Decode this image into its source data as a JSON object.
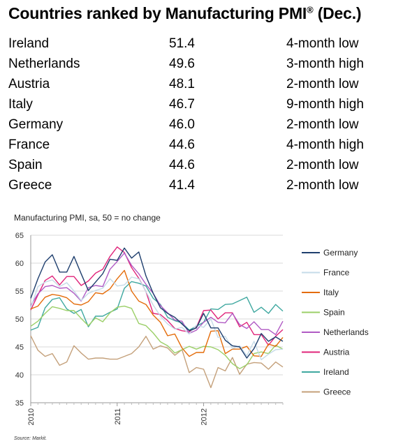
{
  "header": {
    "title_main": "Countries ranked by Manufacturing PMI",
    "title_sup": "®",
    "title_tail": " (Dec.)"
  },
  "ranking": [
    {
      "country": "Ireland",
      "pmi": "51.4",
      "status": "4-month low"
    },
    {
      "country": "Netherlands",
      "pmi": "49.6",
      "status": "3-month high"
    },
    {
      "country": "Austria",
      "pmi": "48.1",
      "status": "2-month low"
    },
    {
      "country": "Italy",
      "pmi": "46.7",
      "status": "9-month high"
    },
    {
      "country": "Germany",
      "pmi": "46.0",
      "status": "2-month low"
    },
    {
      "country": "France",
      "pmi": "44.6",
      "status": "4-month high"
    },
    {
      "country": "Spain",
      "pmi": "44.6",
      "status": "2-month low"
    },
    {
      "country": "Greece",
      "pmi": "41.4",
      "status": "2-month low"
    }
  ],
  "source": "Source: Markit.",
  "chart_data": {
    "type": "line",
    "title": "Manufacturing PMI, sa, 50 = no change",
    "xlabel": "",
    "ylabel": "",
    "ylim": [
      35,
      65
    ],
    "yticks": [
      35,
      40,
      45,
      50,
      55,
      60,
      65
    ],
    "x_period": "monthly, Jan 2010 – Dec 2012",
    "x_ticklabels": [
      "2010",
      "2011",
      "2012"
    ],
    "grid": "horizontal gridlines",
    "legend": "right",
    "series": [
      {
        "name": "Germany",
        "color": "#1f3f6e",
        "values": [
          53.7,
          57.2,
          60.2,
          61.5,
          58.4,
          58.4,
          61.2,
          58.1,
          55.1,
          56.6,
          58.1,
          60.7,
          60.5,
          62.7,
          60.9,
          62.0,
          57.7,
          54.6,
          52.0,
          51.0,
          50.3,
          49.1,
          47.9,
          48.4,
          51.0,
          48.4,
          48.4,
          46.2,
          45.2,
          45.0,
          43.0,
          44.7,
          47.4,
          46.0,
          46.8,
          46.0
        ]
      },
      {
        "name": "France",
        "color": "#c5dbe8",
        "values": [
          52.0,
          55.8,
          56.6,
          57.0,
          55.8,
          56.5,
          55.0,
          53.3,
          54.6,
          55.1,
          55.5,
          57.2,
          55.9,
          56.1,
          57.5,
          57.2,
          54.9,
          52.5,
          50.5,
          49.1,
          48.2,
          48.5,
          47.3,
          48.9,
          48.5,
          50.0,
          46.7,
          46.9,
          44.7,
          45.2,
          43.4,
          46.0,
          42.7,
          43.7,
          44.5,
          44.6
        ]
      },
      {
        "name": "Italy",
        "color": "#e46c0a",
        "values": [
          51.8,
          52.3,
          53.9,
          54.4,
          54.2,
          53.8,
          52.7,
          52.5,
          53.1,
          54.7,
          54.5,
          55.4,
          57.2,
          58.7,
          55.0,
          53.2,
          52.6,
          50.7,
          49.4,
          47.0,
          47.3,
          44.8,
          43.3,
          44.0,
          44.0,
          47.8,
          47.9,
          43.8,
          44.6,
          44.6,
          45.1,
          43.4,
          43.3,
          45.5,
          45.1,
          46.7
        ]
      },
      {
        "name": "Spain",
        "color": "#9bcf68",
        "values": [
          48.7,
          49.6,
          51.0,
          52.2,
          51.9,
          51.5,
          51.5,
          50.1,
          48.8,
          50.2,
          49.5,
          51.1,
          52.1,
          52.3,
          51.9,
          49.2,
          48.8,
          47.5,
          45.9,
          45.2,
          43.9,
          44.5,
          45.1,
          44.6,
          45.1,
          45.0,
          44.5,
          43.5,
          42.0,
          41.1,
          41.8,
          43.8,
          44.1,
          43.8,
          45.3,
          44.6
        ]
      },
      {
        "name": "Netherlands",
        "color": "#b05ac4",
        "values": [
          52.4,
          54.5,
          55.8,
          56.0,
          55.5,
          55.6,
          54.6,
          53.2,
          55.6,
          56.0,
          55.8,
          58.9,
          60.3,
          61.8,
          59.6,
          58.1,
          56.2,
          54.6,
          52.4,
          51.1,
          49.8,
          49.6,
          47.4,
          48.0,
          49.4,
          50.3,
          49.4,
          49.3,
          51.0,
          49.0,
          48.3,
          49.5,
          48.1,
          48.1,
          47.2,
          49.6
        ]
      },
      {
        "name": "Austria",
        "color": "#e0247a",
        "values": [
          51.6,
          54.3,
          56.9,
          57.7,
          56.1,
          57.6,
          57.6,
          56.0,
          56.8,
          58.2,
          58.9,
          61.2,
          62.9,
          61.9,
          59.2,
          57.3,
          54.9,
          51.0,
          50.8,
          49.7,
          48.3,
          47.9,
          47.7,
          48.5,
          51.5,
          51.6,
          50.0,
          51.1,
          51.1,
          48.6,
          49.4,
          47.2,
          47.2,
          45.3,
          46.9,
          48.1
        ]
      },
      {
        "name": "Ireland",
        "color": "#3fa8a0",
        "values": [
          48.0,
          48.5,
          52.0,
          53.5,
          53.8,
          51.8,
          51.0,
          51.7,
          48.6,
          50.5,
          50.5,
          51.2,
          51.8,
          55.5,
          56.7,
          56.4,
          55.9,
          53.7,
          52.6,
          50.3,
          49.7,
          49.3,
          48.0,
          48.7,
          49.4,
          51.8,
          51.7,
          52.6,
          52.7,
          53.3,
          53.9,
          51.2,
          52.1,
          51.0,
          52.6,
          51.4
        ]
      },
      {
        "name": "Greece",
        "color": "#c4a07a",
        "values": [
          47.0,
          44.4,
          43.3,
          43.8,
          41.7,
          42.3,
          45.2,
          43.9,
          42.8,
          43.0,
          43.0,
          42.8,
          42.8,
          43.3,
          43.8,
          45.0,
          46.9,
          44.6,
          45.2,
          44.8,
          43.5,
          44.5,
          40.4,
          41.3,
          41.0,
          37.7,
          41.3,
          40.7,
          43.1,
          40.1,
          41.9,
          42.2,
          42.1,
          41.0,
          42.3,
          41.4
        ]
      }
    ]
  }
}
